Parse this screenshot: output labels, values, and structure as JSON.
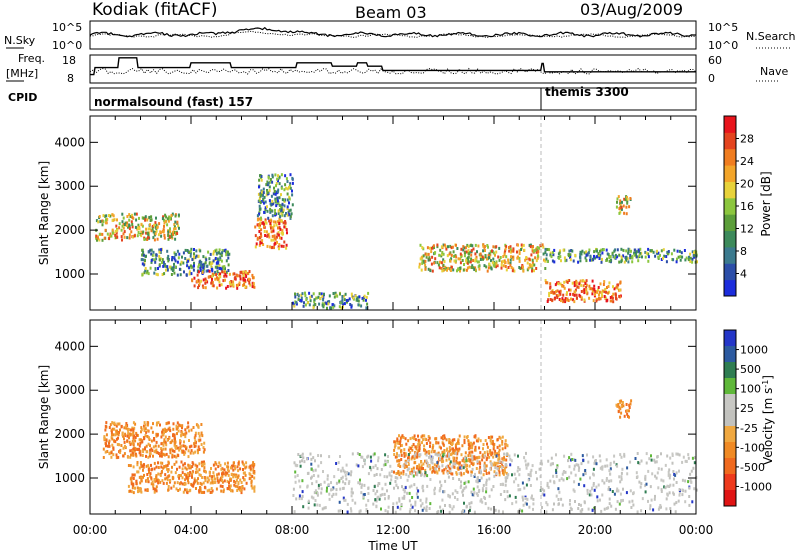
{
  "header": {
    "station": "Kodiak (fitACF)",
    "beam": "Beam 03",
    "date": "03/Aug/2009"
  },
  "top_panels": {
    "nsky_label": "N.Sky",
    "nsky_ticks": [
      "10^5",
      "10^0"
    ],
    "nsearch_label": "N.Search",
    "nsearch_ticks": [
      "10^5",
      "10^0"
    ],
    "freq_label": "Freq.",
    "freq_unit": "[MHz]",
    "freq_ticks": [
      "18",
      "8"
    ],
    "nave_label": "Nave",
    "nave_ticks": [
      "60",
      "0"
    ],
    "cpid_label": "CPID",
    "cpid_segments": [
      {
        "label": "normalsound (fast) 157",
        "start_h": 0,
        "end_h": 18
      },
      {
        "label": "themis 3300",
        "start_h": 18,
        "end_h": 24
      }
    ]
  },
  "colors": {
    "power_scale": [
      "#1c2ddc",
      "#2c4ea8",
      "#3b7a8e",
      "#3d8a5b",
      "#5c9e3a",
      "#8cc63e",
      "#e8d23a",
      "#f3a52a",
      "#f07d20",
      "#e4441f",
      "#e8141c"
    ],
    "velocity_scale": [
      "#2436c8",
      "#2c5aa0",
      "#2f7d52",
      "#5fb83a",
      "#c8c8c4",
      "#c2c2be",
      "#f0a840",
      "#f08a24",
      "#f06a1e",
      "#ee3a1c",
      "#e01414"
    ]
  },
  "chart_data": [
    {
      "type": "heatmap",
      "name": "power",
      "xlabel": "Time UT",
      "ylabel": "Slant Range [km]",
      "x_ticks": [
        "00:00",
        "04:00",
        "08:00",
        "12:00",
        "16:00",
        "20:00",
        "00:00"
      ],
      "xlim_hours": [
        0,
        24
      ],
      "y_ticks": [
        1000,
        2000,
        3000,
        4000
      ],
      "ylim_km": [
        180,
        4600
      ],
      "colorbar_label": "Power [dB]",
      "colorbar_ticks": [
        4,
        8,
        12,
        16,
        20,
        24,
        28
      ],
      "colorbar_range": [
        0,
        32
      ],
      "cpid_change_h": 18,
      "echo_regions": [
        {
          "t0": 0.2,
          "t1": 3.5,
          "r0": 1800,
          "r1": 2400,
          "level": "mid-high"
        },
        {
          "t0": 2.0,
          "t1": 5.5,
          "r0": 1000,
          "r1": 1600,
          "level": "mid"
        },
        {
          "t0": 4.0,
          "t1": 6.5,
          "r0": 700,
          "r1": 1100,
          "level": "high"
        },
        {
          "t0": 6.5,
          "t1": 7.8,
          "r0": 1600,
          "r1": 2300,
          "level": "high"
        },
        {
          "t0": 6.6,
          "t1": 8.0,
          "r0": 2300,
          "r1": 3300,
          "level": "mid"
        },
        {
          "t0": 8.0,
          "t1": 11.0,
          "r0": 250,
          "r1": 600,
          "level": "mid"
        },
        {
          "t0": 13.0,
          "t1": 18.0,
          "r0": 1100,
          "r1": 1700,
          "level": "mid-high"
        },
        {
          "t0": 18.0,
          "t1": 24.0,
          "r0": 1300,
          "r1": 1600,
          "level": "mid"
        },
        {
          "t0": 18.0,
          "t1": 21.0,
          "r0": 400,
          "r1": 900,
          "level": "high"
        },
        {
          "t0": 20.8,
          "t1": 21.4,
          "r0": 2400,
          "r1": 2800,
          "level": "mid-high"
        }
      ]
    },
    {
      "type": "heatmap",
      "name": "velocity",
      "xlabel": "Time UT",
      "ylabel": "Slant Range [km]",
      "x_ticks": [
        "00:00",
        "04:00",
        "08:00",
        "12:00",
        "16:00",
        "20:00",
        "00:00"
      ],
      "xlim_hours": [
        0,
        24
      ],
      "y_ticks": [
        1000,
        2000,
        3000,
        4000
      ],
      "ylim_km": [
        180,
        4600
      ],
      "colorbar_label": "Velocity [m s^-1]",
      "colorbar_ticks": [
        "1000",
        "500",
        "100",
        "25",
        "-25",
        "-100",
        "-500",
        "-1000"
      ],
      "cpid_change_h": 18,
      "echo_regions": [
        {
          "t0": 0.5,
          "t1": 4.5,
          "r0": 1500,
          "r1": 2300,
          "level": "negative"
        },
        {
          "t0": 1.5,
          "t1": 6.5,
          "r0": 700,
          "r1": 1400,
          "level": "negative"
        },
        {
          "t0": 12.0,
          "t1": 16.5,
          "r0": 1100,
          "r1": 2000,
          "level": "negative"
        },
        {
          "t0": 8.0,
          "t1": 24.0,
          "r0": 250,
          "r1": 1600,
          "level": "near-zero"
        },
        {
          "t0": 20.8,
          "t1": 21.4,
          "r0": 2400,
          "r1": 2800,
          "level": "negative"
        }
      ]
    }
  ]
}
